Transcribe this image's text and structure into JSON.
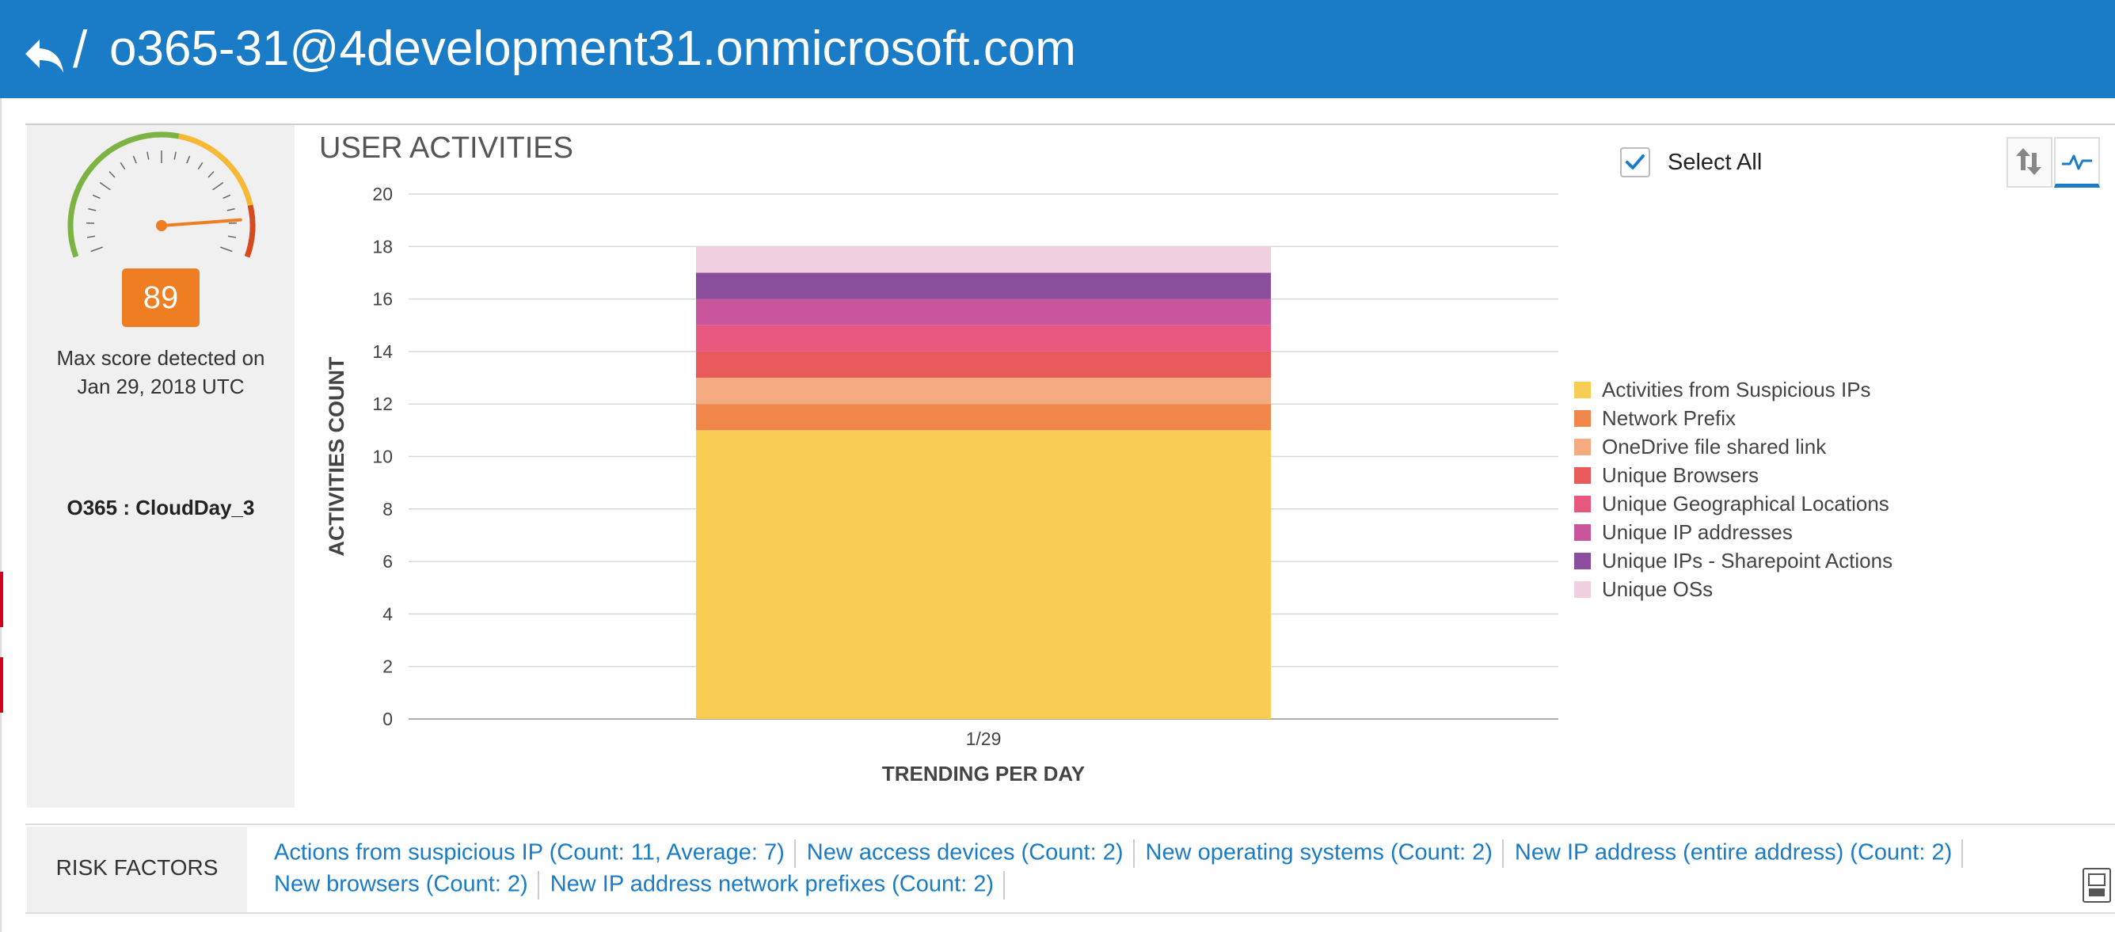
{
  "header": {
    "title": "o365-31@4development31.onmicrosoft.com",
    "separator": "/"
  },
  "score_panel": {
    "score": "89",
    "gauge_level": 0.89,
    "caption_line1": "Max score detected on",
    "caption_line2": "Jan 29, 2018 UTC",
    "source": "O365 : CloudDay_3"
  },
  "chart_header": {
    "title": "USER ACTIVITIES",
    "select_all_label": "Select All",
    "select_all_checked": true
  },
  "chart_data": {
    "type": "bar",
    "stacked": true,
    "categories": [
      "1/29"
    ],
    "series": [
      {
        "name": "Activities from Suspicious IPs",
        "values": [
          11
        ],
        "color": "#f9cd53"
      },
      {
        "name": "Network Prefix",
        "values": [
          1
        ],
        "color": "#f0864a"
      },
      {
        "name": "OneDrive file shared link",
        "values": [
          1
        ],
        "color": "#f5ab81"
      },
      {
        "name": "Unique Browsers",
        "values": [
          1
        ],
        "color": "#e95a5a"
      },
      {
        "name": "Unique Geographical Locations",
        "values": [
          1
        ],
        "color": "#e8587e"
      },
      {
        "name": "Unique IP addresses",
        "values": [
          1
        ],
        "color": "#c9559c"
      },
      {
        "name": "Unique IPs - Sharepoint Actions",
        "values": [
          1
        ],
        "color": "#8a4e9c"
      },
      {
        "name": "Unique OSs",
        "values": [
          1
        ],
        "color": "#f0cfe0"
      }
    ],
    "title": "USER ACTIVITIES",
    "xlabel": "TRENDING PER DAY",
    "ylabel": "ACTIVITIES COUNT",
    "ylim": [
      0,
      20
    ],
    "yticks": [
      0,
      2,
      4,
      6,
      8,
      10,
      12,
      14,
      16,
      18,
      20
    ],
    "grid": true,
    "legend_position": "right"
  },
  "risk_factors": {
    "label": "RISK FACTORS",
    "line1": [
      "Actions from suspicious IP (Count: 11, Average: 7)",
      "New access devices (Count: 2)",
      "New operating systems (Count: 2)",
      "New IP address (entire address) (Count: 2)"
    ],
    "line2": [
      "New browsers (Count: 2)",
      "New IP address network prefixes (Count: 2)"
    ]
  },
  "icons": {
    "back": "back-arrow-icon",
    "view_toggle_1": "arrows-up-down-icon",
    "view_toggle_2": "activity-line-icon",
    "corner": "report-icon"
  }
}
